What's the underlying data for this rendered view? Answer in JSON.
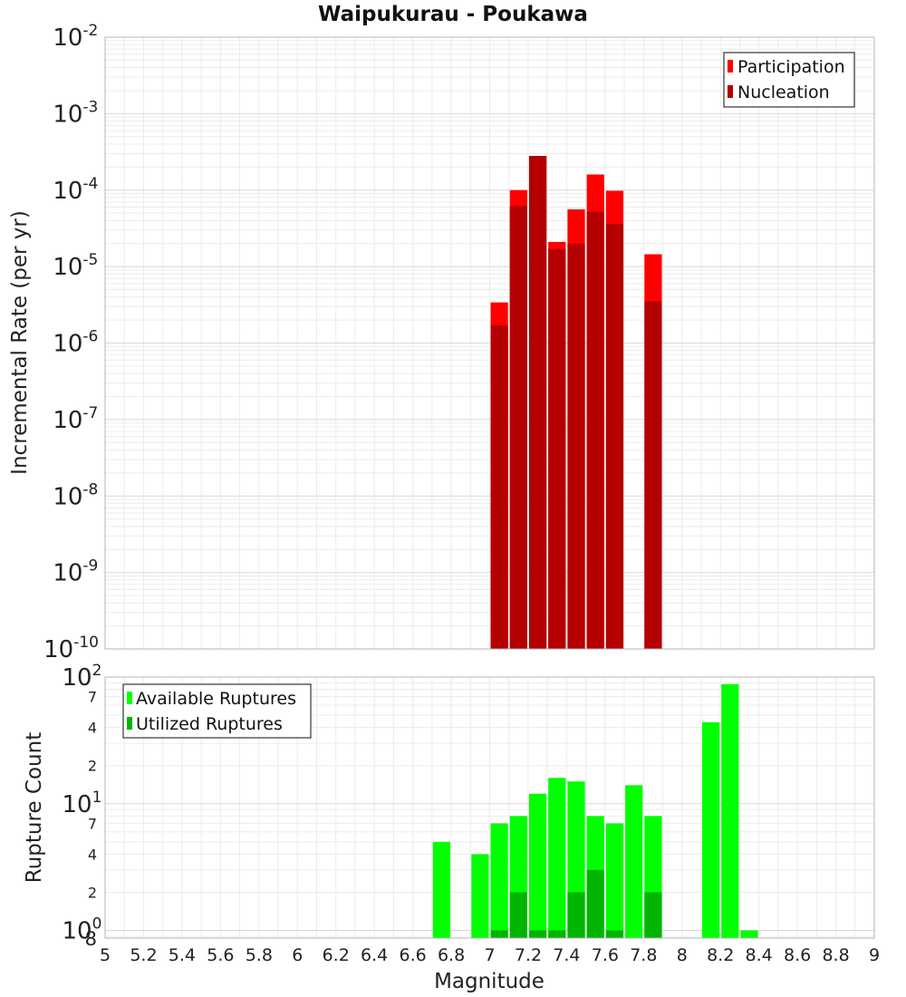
{
  "chart_data": [
    {
      "type": "bar",
      "title": "Waipukurau - Poukawa",
      "xlabel": "",
      "ylabel": "Incremental Rate (per yr)",
      "xlim": [
        5,
        9
      ],
      "ylim": [
        1e-10,
        0.01
      ],
      "y_scale": "log",
      "grid": true,
      "legend_position": "top-right",
      "y_ticks": [
        {
          "base": "10",
          "exp": "-10"
        },
        {
          "base": "10",
          "exp": "-9"
        },
        {
          "base": "10",
          "exp": "-8"
        },
        {
          "base": "10",
          "exp": "-7"
        },
        {
          "base": "10",
          "exp": "-6"
        },
        {
          "base": "10",
          "exp": "-5"
        },
        {
          "base": "10",
          "exp": "-4"
        },
        {
          "base": "10",
          "exp": "-3"
        },
        {
          "base": "10",
          "exp": "-2"
        }
      ],
      "x": [
        7.05,
        7.15,
        7.25,
        7.35,
        7.45,
        7.55,
        7.65,
        7.85
      ],
      "series": [
        {
          "name": "Participation",
          "color": "#ff0000",
          "values": [
            3.4e-06,
            0.0001,
            0.00028,
            2.1e-05,
            5.6e-05,
            0.00016,
            9.8e-05,
            1.45e-05
          ]
        },
        {
          "name": "Nucleation",
          "color": "#b40000",
          "values": [
            1.7e-06,
            6.2e-05,
            0.00028,
            1.7e-05,
            2e-05,
            5.2e-05,
            3.6e-05,
            3.5e-06
          ]
        }
      ]
    },
    {
      "type": "bar",
      "title": "",
      "xlabel": "Magnitude",
      "ylabel": "Rupture Count",
      "xlim": [
        5,
        9
      ],
      "ylim": [
        0.87,
        100
      ],
      "y_scale": "log",
      "grid": true,
      "legend_position": "top-left",
      "x_tick_labels": [
        "5",
        "5.2",
        "5.4",
        "5.6",
        "5.8",
        "6",
        "6.2",
        "6.4",
        "6.6",
        "6.8",
        "7",
        "7.2",
        "7.4",
        "7.6",
        "7.8",
        "8",
        "8.2",
        "8.4",
        "8.6",
        "8.8",
        "9"
      ],
      "y_major_ticks": [
        {
          "base": "10",
          "exp": "0"
        },
        {
          "base": "10",
          "exp": "1"
        },
        {
          "base": "10",
          "exp": "2"
        }
      ],
      "y_minor_labels": [
        {
          "value": 0.8,
          "label": "8"
        },
        {
          "value": 2,
          "label": "2"
        },
        {
          "value": 4,
          "label": "4"
        },
        {
          "value": 7,
          "label": "7"
        },
        {
          "value": 20,
          "label": "2"
        },
        {
          "value": 40,
          "label": "4"
        },
        {
          "value": 70,
          "label": "7"
        }
      ],
      "x": [
        6.75,
        6.95,
        7.05,
        7.15,
        7.25,
        7.35,
        7.45,
        7.55,
        7.65,
        7.75,
        7.85,
        8.15,
        8.25,
        8.35
      ],
      "series": [
        {
          "name": "Available Ruptures",
          "color": "#00ff00",
          "values": [
            5,
            4,
            7,
            8,
            12,
            16,
            15,
            8,
            7,
            14,
            8,
            44,
            88,
            1
          ]
        },
        {
          "name": "Utilized Ruptures",
          "color": "#00b400",
          "values": [
            0,
            0,
            1,
            2,
            1,
            1,
            2,
            3,
            1,
            0,
            2,
            0,
            0,
            0
          ]
        }
      ]
    }
  ]
}
